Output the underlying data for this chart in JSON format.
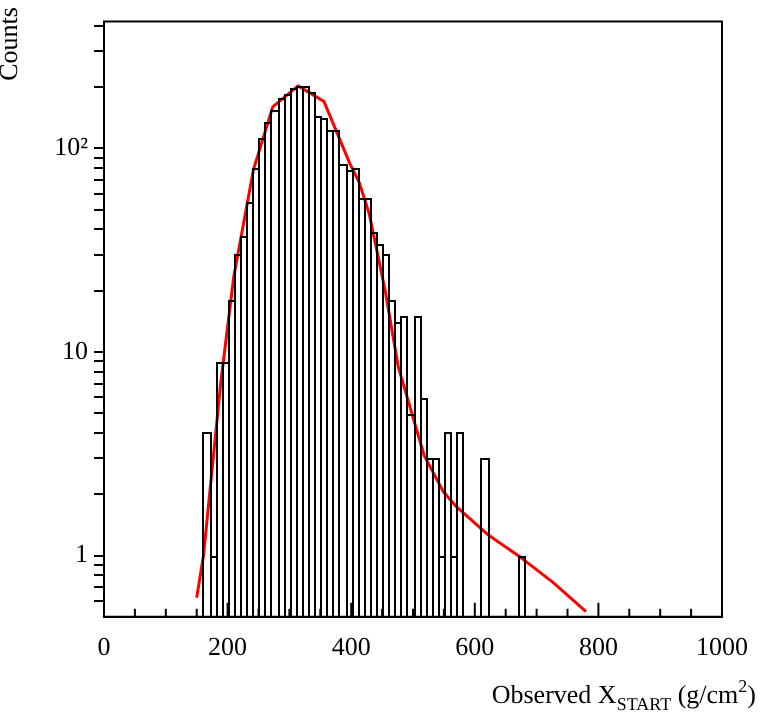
{
  "chart_data": {
    "type": "histogram",
    "xlabel": "Observed X$_{START}$ (g/cm$^{2}$)",
    "ylabel": "Counts",
    "bins": [
      160,
      170,
      180,
      190,
      200,
      210,
      220,
      230,
      240,
      250,
      260,
      270,
      280,
      290,
      300,
      310,
      320,
      330,
      340,
      350,
      360,
      370,
      380,
      390,
      400,
      410,
      420,
      430,
      440,
      450,
      460,
      470,
      480,
      490,
      500,
      510,
      520,
      530,
      540,
      550,
      560,
      570,
      580
    ],
    "values": [
      4,
      1,
      9,
      9,
      18,
      30,
      37,
      55,
      80,
      112,
      134,
      154,
      178,
      185,
      200,
      204,
      204,
      190,
      143,
      140,
      124,
      124,
      84,
      79,
      80,
      57,
      57,
      39,
      34,
      30,
      18,
      14,
      15,
      5,
      15,
      6,
      3,
      3,
      1,
      4,
      1,
      4
    ],
    "color": "#000000",
    "series": [
      {
        "type": "histogram",
        "color": "#000000",
        "bins": [
          610,
          620
        ],
        "values": [
          3
        ]
      },
      {
        "type": "histogram",
        "color": "#000000",
        "bins": [
          670,
          680
        ],
        "values": [
          1
        ]
      },
      {
        "type": "line",
        "color": "#ff0000",
        "x": [
          150,
          161,
          189,
          210,
          242,
          273,
          314,
          356,
          398,
          413,
          429,
          455,
          476,
          518,
          549,
          570,
          622,
          674,
          726,
          780
        ],
        "values": [
          0.62,
          1.0,
          7.1,
          23.5,
          79,
          160,
          203,
          170,
          84,
          68,
          48,
          20,
          8.5,
          3.1,
          2.06,
          1.74,
          1.26,
          0.98,
          0.74,
          0.53
        ]
      }
    ],
    "log": "y",
    "xlim": [
      0,
      1000
    ],
    "ylim": [
      0.5,
      420
    ],
    "xticks": [
      0,
      {
        "value": 50,
        "label": null
      },
      {
        "value": 100,
        "label": null
      },
      {
        "value": 150,
        "label": null
      },
      200,
      {
        "value": 250,
        "label": null
      },
      {
        "value": 300,
        "label": null
      },
      {
        "value": 350,
        "label": null
      },
      400,
      {
        "value": 450,
        "label": null
      },
      {
        "value": 500,
        "label": null
      },
      {
        "value": 550,
        "label": null
      },
      600,
      {
        "value": 650,
        "label": null
      },
      {
        "value": 700,
        "label": null
      },
      {
        "value": 750,
        "label": null
      },
      800,
      {
        "value": 850,
        "label": null
      },
      {
        "value": 900,
        "label": null
      },
      {
        "value": 950,
        "label": null
      },
      1000
    ],
    "yticks": [
      {
        "value": 0.6,
        "label": null
      },
      {
        "value": 0.7,
        "label": null
      },
      {
        "value": 0.8,
        "label": null
      },
      {
        "value": 0.9,
        "label": null
      },
      1,
      {
        "value": 2,
        "label": null
      },
      {
        "value": 3,
        "label": null
      },
      {
        "value": 4,
        "label": null
      },
      {
        "value": 5,
        "label": null
      },
      {
        "value": 6,
        "label": null
      },
      {
        "value": 7,
        "label": null
      },
      {
        "value": 8,
        "label": null
      },
      {
        "value": 9,
        "label": null
      },
      10,
      {
        "value": 20,
        "label": null
      },
      {
        "value": 30,
        "label": null
      },
      {
        "value": 40,
        "label": null
      },
      {
        "value": 50,
        "label": null
      },
      {
        "value": 60,
        "label": null
      },
      {
        "value": 70,
        "label": null
      },
      {
        "value": 80,
        "label": null
      },
      {
        "value": 90,
        "label": null
      },
      {
        "value": 100,
        "label": "10²"
      },
      {
        "value": 200,
        "label": null
      },
      {
        "value": 300,
        "label": null
      },
      {
        "value": 400,
        "label": null
      }
    ],
    "grid": false,
    "legend": false
  }
}
